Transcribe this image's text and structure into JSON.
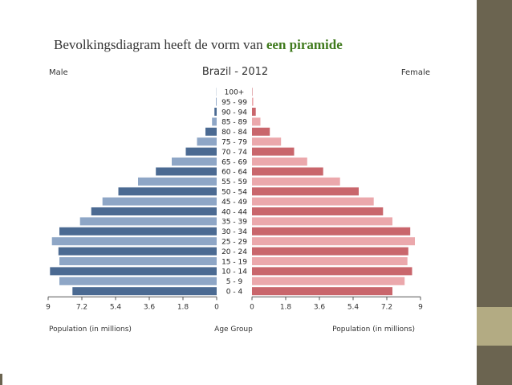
{
  "slide": {
    "title_prefix": "Bevolkingsdiagram heeft de vorm van ",
    "title_highlight": "een piramide"
  },
  "colors": {
    "male_dark": "#4b6a92",
    "male_light": "#8ea6c6",
    "female_dark": "#c9666c",
    "female_light": "#eba8ac",
    "accent_green": "#3f7a1c",
    "sidebar": "#6b6450",
    "sidebar_tab": "#b3ab83"
  },
  "chart_data": {
    "type": "bar",
    "orientation": "horizontal-butterfly",
    "title": "Brazil - 2012",
    "left_label": "Male",
    "right_label": "Female",
    "xlabel_left": "Population (in millions)",
    "xlabel_center": "Age Group",
    "xlabel_right": "Population (in millions)",
    "xlim": [
      0,
      9
    ],
    "male_ticks": [
      "9",
      "7.2",
      "5.4",
      "3.6",
      "1.8",
      "0"
    ],
    "female_ticks": [
      "0",
      "1.8",
      "3.6",
      "5.4",
      "7.2",
      "9"
    ],
    "categories": [
      "100+",
      "95 - 99",
      "90 - 94",
      "85 - 89",
      "80 - 84",
      "75 - 79",
      "70 - 74",
      "65 - 69",
      "60 - 64",
      "55 - 59",
      "50 - 54",
      "45 - 49",
      "40 - 44",
      "35 - 39",
      "30 - 34",
      "25 - 29",
      "20 - 24",
      "15 - 19",
      "10 - 14",
      "5 - 9",
      "0 - 4"
    ],
    "series": [
      {
        "name": "Male",
        "values": [
          0.01,
          0.04,
          0.12,
          0.25,
          0.6,
          1.05,
          1.65,
          2.4,
          3.25,
          4.2,
          5.25,
          6.1,
          6.7,
          7.3,
          8.4,
          8.8,
          8.45,
          8.4,
          8.9,
          8.4,
          7.7
        ]
      },
      {
        "name": "Female",
        "values": [
          0.02,
          0.07,
          0.2,
          0.45,
          0.95,
          1.55,
          2.25,
          2.95,
          3.8,
          4.7,
          5.7,
          6.5,
          7.0,
          7.5,
          8.45,
          8.7,
          8.35,
          8.3,
          8.55,
          8.15,
          7.5
        ]
      }
    ],
    "grid": false
  }
}
